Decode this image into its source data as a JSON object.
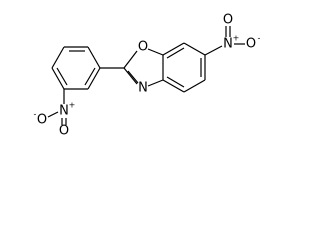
{
  "atoms": [
    {
      "label": "O"
    },
    {
      "label": "N"
    },
    {
      "label": "N",
      "charge": "+"
    },
    {
      "label": "O"
    },
    {
      "label": "O",
      "charge": "-"
    },
    {
      "label": "N",
      "charge": "+"
    },
    {
      "label": "O"
    },
    {
      "label": "O",
      "charge": "-"
    }
  ]
}
